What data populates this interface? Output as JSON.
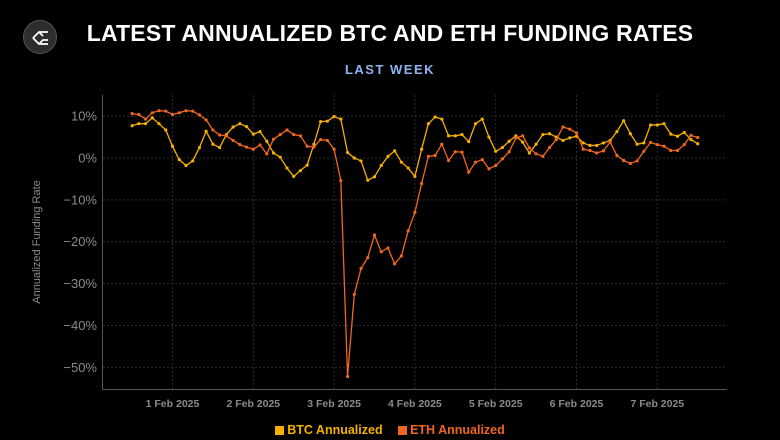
{
  "header": {
    "title": "LATEST ANNUALIZED BTC AND ETH FUNDING RATES",
    "subtitle": "LAST WEEK",
    "logo_icon": "brand-logo-icon"
  },
  "chart_data": {
    "type": "line",
    "title": "LATEST ANNUALIZED BTC AND ETH FUNDING RATES",
    "subtitle": "LAST WEEK",
    "xlabel": "",
    "ylabel": "Annualized Funding Rate",
    "ylim": [
      -52,
      14
    ],
    "y_ticks": [
      10,
      0,
      -10,
      -20,
      -30,
      -40,
      -50
    ],
    "y_tick_labels": [
      "10%",
      "0%",
      "−10%",
      "−20%",
      "−30%",
      "−40%",
      "−50%"
    ],
    "x_ticks": [
      "2025-02-01 00:00",
      "2025-02-02 00:00",
      "2025-02-03 00:00",
      "2025-02-04 00:00",
      "2025-02-05 00:00",
      "2025-02-06 00:00",
      "2025-02-07 00:00"
    ],
    "x_tick_labels": [
      "1 Feb 2025",
      "2 Feb 2025",
      "3 Feb 2025",
      "4 Feb 2025",
      "5 Feb 2025",
      "6 Feb 2025",
      "7 Feb 2025"
    ],
    "grid": true,
    "legend_position": "bottom",
    "x": [
      "2025-01-31 12:00",
      "2025-01-31 14:00",
      "2025-01-31 16:00",
      "2025-01-31 18:00",
      "2025-01-31 20:00",
      "2025-01-31 22:00",
      "2025-02-01 00:00",
      "2025-02-01 02:00",
      "2025-02-01 04:00",
      "2025-02-01 06:00",
      "2025-02-01 08:00",
      "2025-02-01 10:00",
      "2025-02-01 12:00",
      "2025-02-01 14:00",
      "2025-02-01 16:00",
      "2025-02-01 18:00",
      "2025-02-01 20:00",
      "2025-02-01 22:00",
      "2025-02-02 00:00",
      "2025-02-02 02:00",
      "2025-02-02 04:00",
      "2025-02-02 06:00",
      "2025-02-02 08:00",
      "2025-02-02 10:00",
      "2025-02-02 12:00",
      "2025-02-02 14:00",
      "2025-02-02 16:00",
      "2025-02-02 18:00",
      "2025-02-02 20:00",
      "2025-02-02 22:00",
      "2025-02-03 00:00",
      "2025-02-03 02:00",
      "2025-02-03 04:00",
      "2025-02-03 06:00",
      "2025-02-03 08:00",
      "2025-02-03 10:00",
      "2025-02-03 12:00",
      "2025-02-03 14:00",
      "2025-02-03 16:00",
      "2025-02-03 18:00",
      "2025-02-03 20:00",
      "2025-02-03 22:00",
      "2025-02-04 00:00",
      "2025-02-04 02:00",
      "2025-02-04 04:00",
      "2025-02-04 06:00",
      "2025-02-04 08:00",
      "2025-02-04 10:00",
      "2025-02-04 12:00",
      "2025-02-04 14:00",
      "2025-02-04 16:00",
      "2025-02-04 18:00",
      "2025-02-04 20:00",
      "2025-02-04 22:00",
      "2025-02-05 00:00",
      "2025-02-05 02:00",
      "2025-02-05 04:00",
      "2025-02-05 06:00",
      "2025-02-05 08:00",
      "2025-02-05 10:00",
      "2025-02-05 12:00",
      "2025-02-05 14:00",
      "2025-02-05 16:00",
      "2025-02-05 18:00",
      "2025-02-05 20:00",
      "2025-02-05 22:00",
      "2025-02-06 00:00",
      "2025-02-06 02:00",
      "2025-02-06 04:00",
      "2025-02-06 06:00",
      "2025-02-06 08:00",
      "2025-02-06 10:00",
      "2025-02-06 12:00",
      "2025-02-06 14:00",
      "2025-02-06 16:00",
      "2025-02-06 18:00",
      "2025-02-06 20:00",
      "2025-02-06 22:00",
      "2025-02-07 00:00",
      "2025-02-07 02:00",
      "2025-02-07 04:00",
      "2025-02-07 06:00",
      "2025-02-07 08:00",
      "2025-02-07 10:00",
      "2025-02-07 12:00"
    ],
    "series": [
      {
        "name": "BTC Annualized",
        "color": "#f5b000",
        "values": [
          7.7,
          8.2,
          8.2,
          9.6,
          8.2,
          6.7,
          2.8,
          -0.4,
          -1.8,
          -0.7,
          2.5,
          6.4,
          3.3,
          2.5,
          5.6,
          7.4,
          8.2,
          7.5,
          5.7,
          6.3,
          4.0,
          1.2,
          0.2,
          -2.4,
          -4.4,
          -3.0,
          -1.7,
          3.3,
          8.7,
          8.8,
          9.9,
          9.3,
          1.3,
          0.0,
          -0.7,
          -5.3,
          -4.5,
          -1.8,
          0.4,
          1.7,
          -1.0,
          -2.4,
          -4.4,
          2.1,
          8.2,
          9.8,
          9.3,
          5.3,
          5.3,
          5.6,
          3.9,
          8.2,
          9.3,
          5.0,
          1.6,
          2.5,
          4.0,
          5.3,
          3.8,
          1.2,
          3.3,
          5.6,
          5.8,
          5.0,
          4.2,
          4.8,
          5.2,
          3.6,
          3.0,
          3.0,
          3.6,
          4.2,
          6.3,
          8.9,
          5.8,
          3.3,
          3.6,
          7.9,
          7.9,
          8.2,
          5.7,
          5.2,
          6.1,
          4.4,
          3.4
        ]
      },
      {
        "name": "ETH Annualized",
        "color": "#f0661e",
        "values": [
          10.6,
          10.4,
          9.3,
          10.8,
          11.3,
          11.2,
          10.4,
          10.8,
          11.3,
          11.2,
          10.3,
          9.1,
          6.7,
          5.5,
          5.3,
          4.2,
          3.2,
          2.6,
          2.1,
          3.1,
          1.0,
          4.5,
          5.6,
          6.7,
          5.6,
          5.3,
          2.8,
          2.6,
          4.4,
          4.2,
          2.1,
          -5.4,
          -52.2,
          -32.6,
          -26.4,
          -23.8,
          -18.4,
          -22.4,
          -21.5,
          -25.3,
          -23.4,
          -17.4,
          -13.0,
          -6.1,
          0.4,
          0.6,
          3.3,
          -0.6,
          1.5,
          1.4,
          -3.4,
          -1.0,
          -0.4,
          -2.6,
          -1.8,
          -0.2,
          1.5,
          4.8,
          5.3,
          2.4,
          1.0,
          0.4,
          2.5,
          4.4,
          7.4,
          6.9,
          6.0,
          2.1,
          1.8,
          1.2,
          1.7,
          3.8,
          0.6,
          -0.6,
          -1.3,
          -0.7,
          1.6,
          3.7,
          3.2,
          2.8,
          1.8,
          1.8,
          3.2,
          5.4,
          4.9
        ]
      }
    ]
  }
}
